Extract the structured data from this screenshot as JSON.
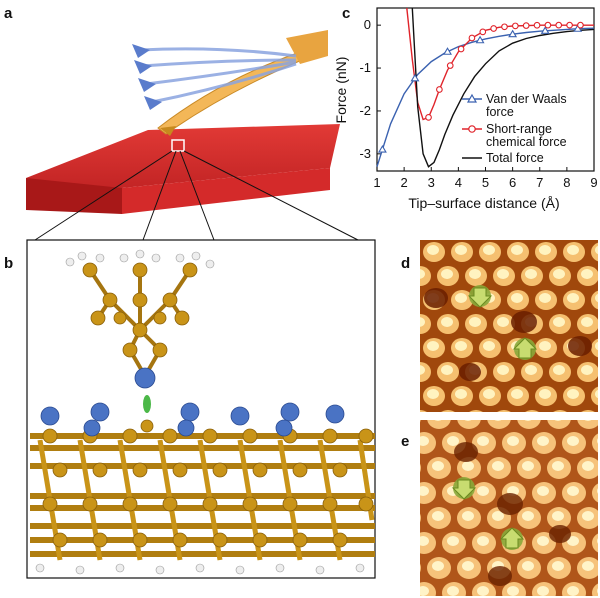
{
  "panels": {
    "a": "a",
    "b": "b",
    "c": "c",
    "d": "d",
    "e": "e"
  },
  "colors": {
    "vdw": "#3b62b0",
    "short_range": "#e0242b",
    "total": "#111111",
    "sample": "#d8262a",
    "cantilever": "#f3b758",
    "silicon": "#c08a18",
    "adatom": "#4a73c4",
    "hydrogen": "#e8e8e8",
    "afm_dark": "#7a2a00",
    "afm_bright": "#fff2b0"
  },
  "chart_data": {
    "type": "line",
    "xlabel": "Tip–surface distance (Å)",
    "ylabel": "Force (nN)",
    "xlim": [
      1,
      9
    ],
    "ylim": [
      -3.4,
      0.4
    ],
    "xticks": [
      "1",
      "2",
      "3",
      "4",
      "5",
      "6",
      "7",
      "8",
      "9"
    ],
    "yticks": [
      "0",
      "-1",
      "-2",
      "-3"
    ],
    "legend_position": "lower-right",
    "series": [
      {
        "name": "Van der Waals force",
        "marker": "triangle",
        "x": [
          1.0,
          1.5,
          2.0,
          2.5,
          3.0,
          3.5,
          4.0,
          4.5,
          5.0,
          5.5,
          6.0,
          6.5,
          7.0,
          7.5,
          8.0,
          8.5,
          9.0
        ],
        "y": [
          -3.3,
          -2.3,
          -1.6,
          -1.15,
          -0.85,
          -0.65,
          -0.5,
          -0.4,
          -0.32,
          -0.26,
          -0.21,
          -0.17,
          -0.14,
          -0.12,
          -0.1,
          -0.08,
          -0.07
        ],
        "markers_x": [
          1.2,
          2.4,
          3.6,
          4.8,
          6.0,
          7.2,
          8.4
        ]
      },
      {
        "name": "Short-range chemical force",
        "marker": "circle",
        "x": [
          2.1,
          2.3,
          2.5,
          2.7,
          2.9,
          3.1,
          3.3,
          3.6,
          4.0,
          4.5,
          5.0,
          5.5,
          6.0,
          7.0,
          8.0,
          9.0
        ],
        "y": [
          0.4,
          -0.8,
          -1.8,
          -2.2,
          -2.15,
          -1.85,
          -1.5,
          -1.05,
          -0.62,
          -0.3,
          -0.12,
          -0.05,
          -0.02,
          0,
          0,
          0
        ],
        "markers_x": [
          2.9,
          3.3,
          3.7,
          4.1,
          4.5,
          4.9,
          5.3,
          5.7,
          6.1,
          6.5,
          6.9,
          7.3,
          7.7,
          8.1,
          8.5
        ]
      },
      {
        "name": "Total force",
        "marker": "none",
        "x": [
          2.3,
          2.5,
          2.7,
          2.9,
          3.1,
          3.3,
          3.5,
          3.8,
          4.2,
          4.6,
          5.0,
          5.5,
          6.0,
          6.5,
          7.0,
          7.5,
          8.0,
          8.5,
          9.0
        ],
        "y": [
          0.4,
          -1.9,
          -3.0,
          -3.3,
          -3.2,
          -2.9,
          -2.55,
          -2.1,
          -1.6,
          -1.2,
          -0.9,
          -0.6,
          -0.42,
          -0.31,
          -0.24,
          -0.19,
          -0.15,
          -0.12,
          -0.1
        ]
      }
    ]
  }
}
